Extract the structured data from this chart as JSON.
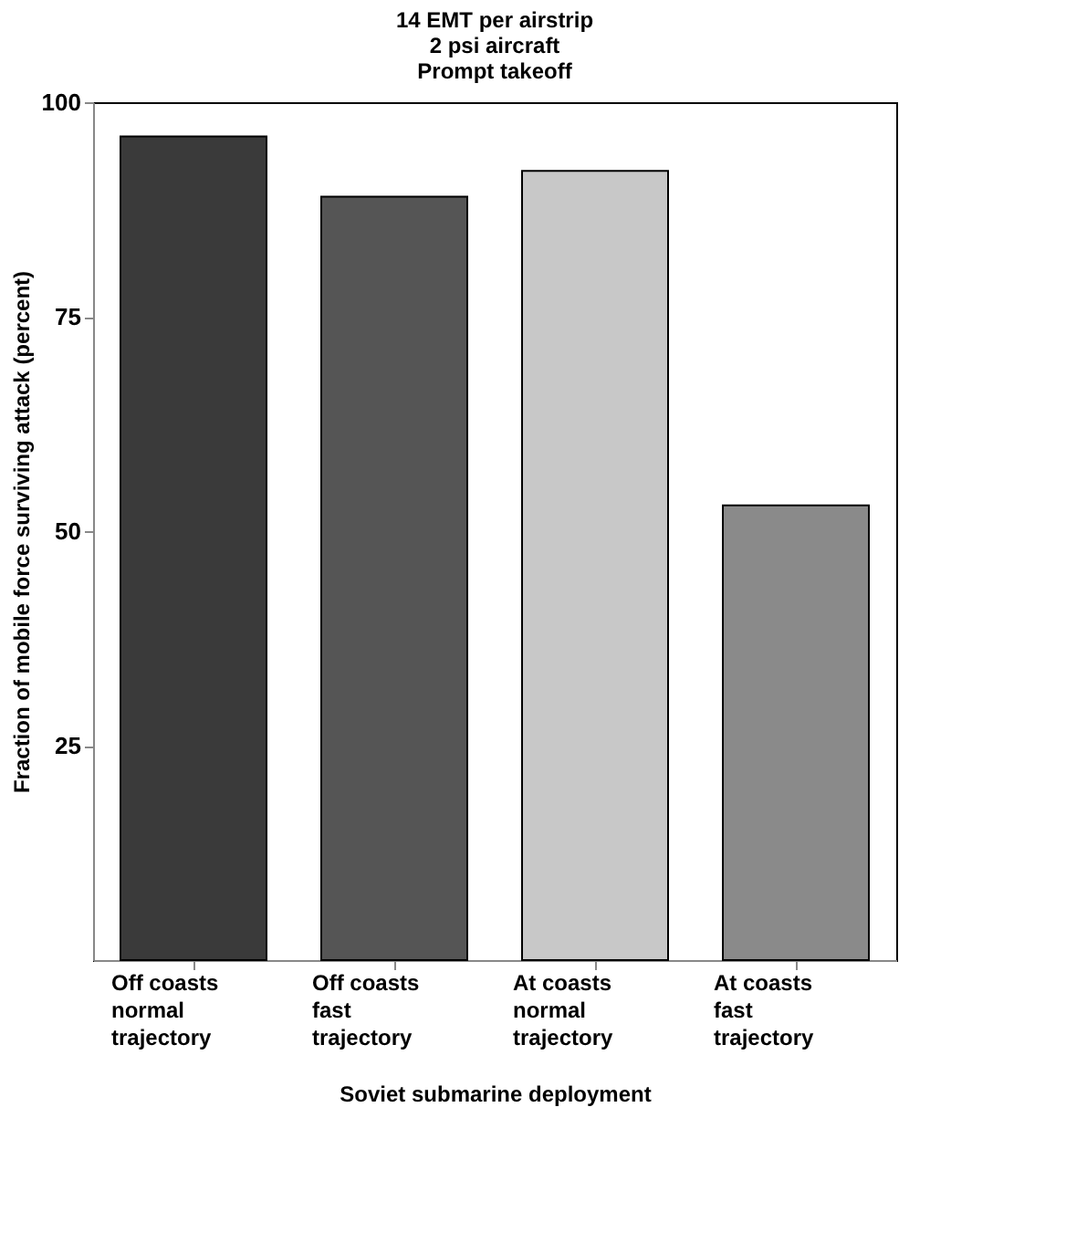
{
  "chart_data": {
    "type": "bar",
    "title": "14 EMT per airstrip\n2 psi aircraft\nPrompt takeoff",
    "categories": [
      "Off coasts\nnormal\ntrajectory",
      "Off coasts\nfast\ntrajectory",
      "At coasts\nnormal\ntrajectory",
      "At coasts\nfast\ntrajectory"
    ],
    "values": [
      96,
      89,
      92,
      53
    ],
    "colors": [
      "#3a3a3a",
      "#555555",
      "#c8c8c8",
      "#8a8a8a"
    ],
    "xlabel": "Soviet submarine deployment",
    "ylabel": "Fraction of mobile force surviving attack (percent)",
    "ylim": [
      0,
      100
    ],
    "yticks": [
      25,
      50,
      75,
      100
    ],
    "grid": false
  }
}
